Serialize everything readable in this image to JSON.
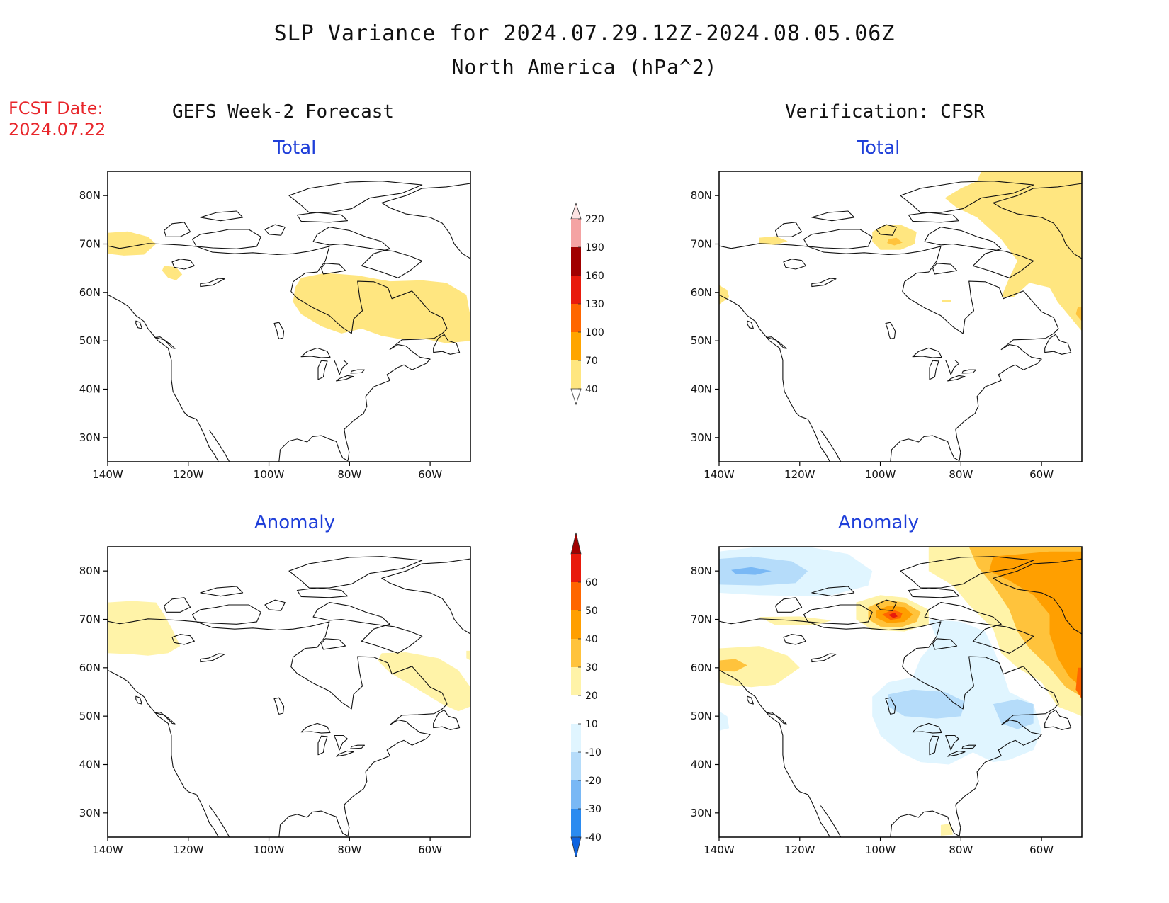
{
  "header": {
    "title": "SLP Variance for 2024.07.29.12Z-2024.08.05.06Z",
    "subtitle": "North America (hPa^2)",
    "fcst_label": "FCST Date:",
    "fcst_date": "2024.07.22"
  },
  "columns": {
    "left": "GEFS Week-2 Forecast",
    "right": "Verification: CFSR"
  },
  "panels": {
    "fc_total": "Total",
    "ver_total": "Total",
    "fc_anom": "Anomaly",
    "ver_anom": "Anomaly"
  },
  "axes": {
    "lon_ticks": [
      "140W",
      "120W",
      "100W",
      "80W",
      "60W"
    ],
    "lat_ticks": [
      "80N",
      "70N",
      "60N",
      "50N",
      "40N",
      "30N"
    ],
    "lon_values": [
      -140,
      -120,
      -100,
      -80,
      -60
    ],
    "lat_values": [
      80,
      70,
      60,
      50,
      40,
      30
    ],
    "lon_range": [
      -140,
      -50
    ],
    "lat_range": [
      25,
      85
    ]
  },
  "legend_total": {
    "labels": [
      "40",
      "70",
      "100",
      "130",
      "160",
      "190",
      "220"
    ],
    "colors": [
      "#ffffff",
      "#ffe680",
      "#ffa500",
      "#ff6600",
      "#e81a0c",
      "#a00000",
      "#f4a3a3",
      "#fde3e3"
    ]
  },
  "legend_anomaly": {
    "labels": [
      "-40",
      "-30",
      "-20",
      "-10",
      "10",
      "20",
      "30",
      "40",
      "50",
      "60"
    ],
    "colors": [
      "#0d63e0",
      "#2b8bf0",
      "#79b8f5",
      "#b5dcfa",
      "#e0f5ff",
      "#ffffff",
      "#fff3a8",
      "#ffc33c",
      "#ff9f00",
      "#ff6600",
      "#e81a0c",
      "#a00000"
    ]
  }
}
